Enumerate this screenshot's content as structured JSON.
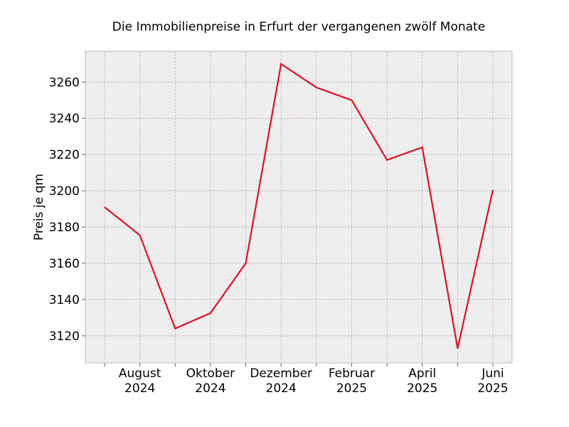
{
  "chart_data": {
    "type": "line",
    "title": "Die Immobilienpreise in Erfurt der vergangenen zwölf Monate",
    "xlabel": "",
    "ylabel": "Preis je qm",
    "x": [
      "2024-07",
      "2024-08",
      "2024-09",
      "2024-10",
      "2024-11",
      "2024-12",
      "2025-01",
      "2025-02",
      "2025-03",
      "2025-04",
      "2025-05",
      "2025-06"
    ],
    "series": [
      {
        "values": [
          3191,
          3175.5,
          3124,
          3132.5,
          3160,
          3270,
          3257,
          3250,
          3217,
          3224,
          3113,
          3200.5
        ]
      }
    ],
    "x_tick_labels": [
      {
        "x": "2024-08",
        "line1": "August",
        "line2": "2024"
      },
      {
        "x": "2024-10",
        "line1": "Oktober",
        "line2": "2024"
      },
      {
        "x": "2024-12",
        "line1": "Dezember",
        "line2": "2024"
      },
      {
        "x": "2025-02",
        "line1": "Februar",
        "line2": "2025"
      },
      {
        "x": "2025-04",
        "line1": "April",
        "line2": "2025"
      },
      {
        "x": "2025-06",
        "line1": "Juni",
        "line2": "2025"
      }
    ],
    "y_ticks": [
      3120,
      3140,
      3160,
      3180,
      3200,
      3220,
      3240,
      3260
    ],
    "ylim": [
      3105,
      3277
    ],
    "grid": true,
    "line_color": "#e3101e",
    "background_color": "#eeeeee"
  }
}
